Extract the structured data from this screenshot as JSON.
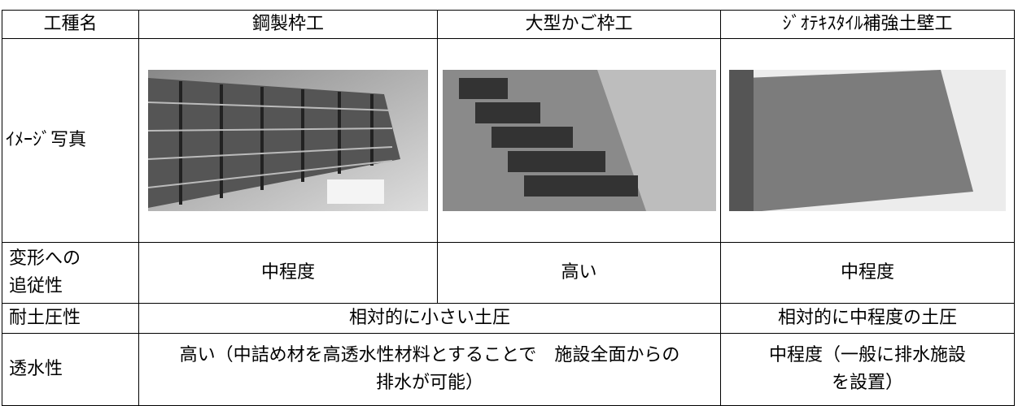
{
  "table": {
    "header": [
      "工種名",
      "鋼製枠工",
      "大型かご枠工",
      "ｼﾞｵﾃｷｽﾀｲﾙ補強土壁工"
    ],
    "rows": [
      [
        "ｲﾒｰｼﾞ写真"
      ],
      [
        "変形への\n追従性",
        "中程度",
        "高い",
        "中程度"
      ],
      [
        "耐土圧性",
        "相対的に小さい土圧",
        "相対的に中程度の土圧"
      ],
      [
        "透水性",
        "高い（中詰め材を高透水性材料とすることで　施設全面からの排水が可能）",
        "中程度（一般に排水施設を設置）"
      ]
    ]
  }
}
